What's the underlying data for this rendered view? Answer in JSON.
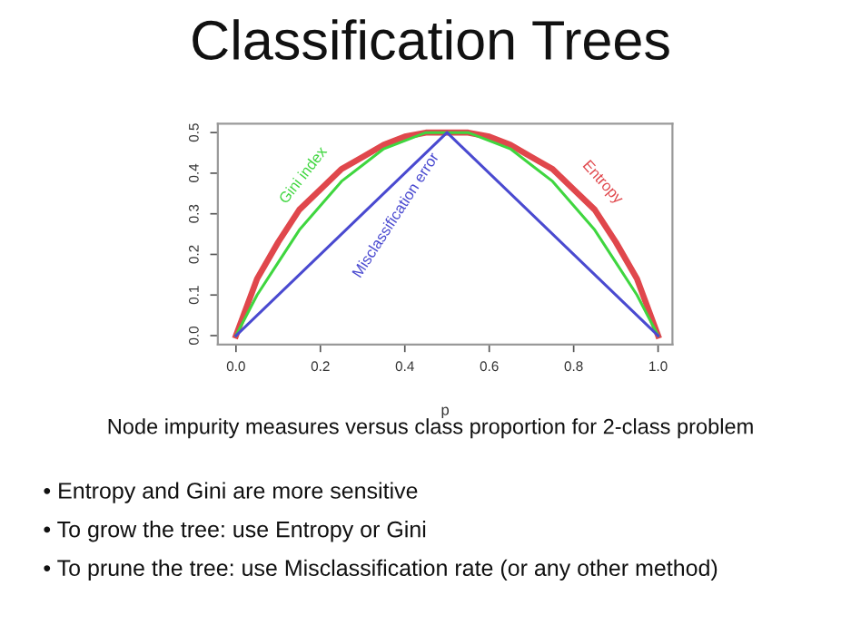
{
  "chart_data": {
    "type": "line",
    "title": "Classification Trees",
    "xlabel": "p",
    "x": [
      0,
      0.05,
      0.1,
      0.15,
      0.2,
      0.25,
      0.3,
      0.35,
      0.4,
      0.45,
      0.5,
      0.55,
      0.6,
      0.65,
      0.7,
      0.75,
      0.8,
      0.85,
      0.9,
      0.95,
      1.0
    ],
    "series": [
      {
        "name": "Entropy",
        "color": "#e0474c",
        "values": [
          0,
          0.14,
          0.23,
          0.31,
          0.36,
          0.41,
          0.44,
          0.47,
          0.49,
          0.5,
          0.5,
          0.5,
          0.49,
          0.47,
          0.44,
          0.41,
          0.36,
          0.31,
          0.23,
          0.14,
          0
        ]
      },
      {
        "name": "Gini index",
        "color": "#3fd63f",
        "values": [
          0,
          0.1,
          0.18,
          0.26,
          0.32,
          0.38,
          0.42,
          0.46,
          0.48,
          0.5,
          0.5,
          0.5,
          0.48,
          0.46,
          0.42,
          0.38,
          0.32,
          0.26,
          0.18,
          0.1,
          0
        ]
      },
      {
        "name": "Misclassification error",
        "color": "#4a4ad0",
        "x": [
          0,
          0.5,
          1.0
        ],
        "values": [
          0,
          0.5,
          0
        ]
      }
    ],
    "xlim": [
      -0.043,
      1.034
    ],
    "ylim": [
      -0.022,
      0.522
    ],
    "xticks": [
      {
        "value": 0,
        "label": "0.0"
      },
      0.2,
      0.4,
      0.6,
      0.8,
      {
        "value": 1,
        "label": "1.0"
      }
    ],
    "yticks": [
      {
        "value": 0,
        "label": "0.0"
      },
      0.1,
      0.2,
      0.3,
      0.4,
      0.5
    ],
    "grid": false,
    "legend": false,
    "marker": "none",
    "line_style": "solid",
    "annotations": [
      "Node impurity measures versus class proportion for 2-class problem",
      "• Entropy and Gini are more sensitive",
      "• To grow the tree: use Entropy or Gini",
      "• To prune the tree: use Misclassification rate (or any other method)"
    ]
  }
}
